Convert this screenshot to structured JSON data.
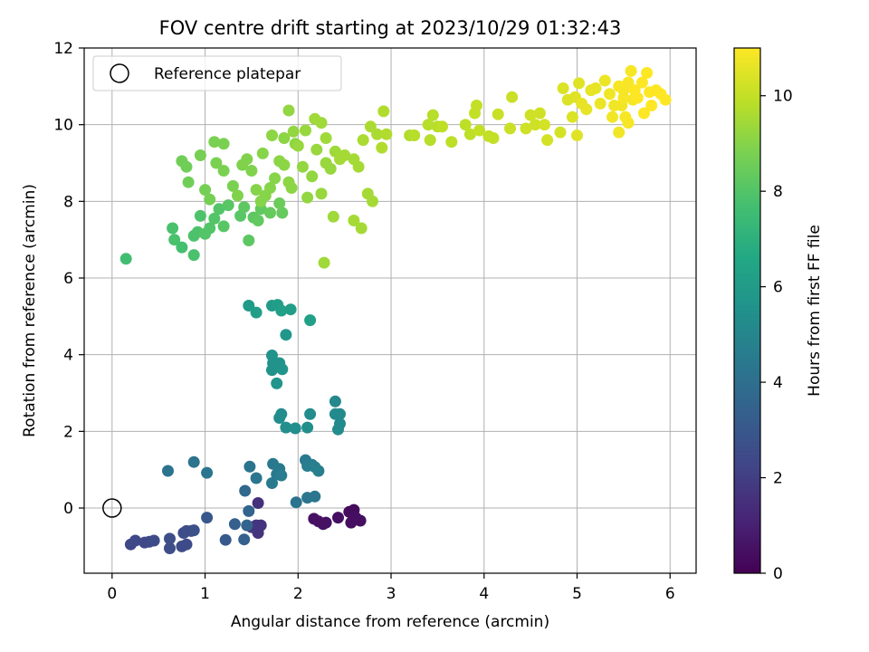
{
  "chart_data": {
    "type": "scatter",
    "title": "FOV centre drift starting at 2023/10/29 01:32:43",
    "xlabel": "Angular distance from reference (arcmin)",
    "ylabel": "Rotation from reference (arcmin)",
    "xlim": [
      -0.3,
      6.28
    ],
    "ylim": [
      -1.7,
      12
    ],
    "xticks": [
      0,
      1,
      2,
      3,
      4,
      5,
      6
    ],
    "yticks": [
      0,
      2,
      4,
      6,
      8,
      10,
      12
    ],
    "grid": true,
    "legend": {
      "placement": "top-left",
      "entries": [
        "Reference platepar"
      ]
    },
    "reference_point": {
      "x": 0,
      "y": 0
    },
    "colorbar": {
      "label": "Hours from first FF file",
      "colormap": "viridis",
      "range": [
        0,
        11
      ],
      "ticks": [
        0,
        2,
        4,
        6,
        8,
        10
      ]
    },
    "series": [
      {
        "columns": [
          "x",
          "y",
          "hours"
        ],
        "points": [
          [
            2.17,
            -0.28,
            0.5
          ],
          [
            2.22,
            -0.35,
            0.5
          ],
          [
            2.27,
            -0.42,
            0.5
          ],
          [
            2.3,
            -0.38,
            0.5
          ],
          [
            2.43,
            -0.25,
            0.4
          ],
          [
            2.55,
            -0.1,
            0.3
          ],
          [
            2.57,
            -0.38,
            0.4
          ],
          [
            2.6,
            -0.05,
            0.3
          ],
          [
            2.62,
            -0.25,
            0.4
          ],
          [
            2.67,
            -0.33,
            0.4
          ],
          [
            1.57,
            -0.65,
            1.6
          ],
          [
            1.6,
            -0.45,
            1.6
          ],
          [
            1.57,
            0.13,
            1.5
          ],
          [
            1.5,
            -0.5,
            1.8
          ],
          [
            1.55,
            -0.45,
            1.7
          ],
          [
            0.2,
            -0.95,
            2.4
          ],
          [
            0.25,
            -0.85,
            2.4
          ],
          [
            0.35,
            -0.9,
            2.4
          ],
          [
            0.4,
            -0.88,
            2.4
          ],
          [
            0.45,
            -0.85,
            2.5
          ],
          [
            0.62,
            -0.8,
            2.6
          ],
          [
            0.62,
            -1.05,
            2.6
          ],
          [
            0.75,
            -1.0,
            2.5
          ],
          [
            0.8,
            -0.95,
            2.5
          ],
          [
            0.77,
            -0.65,
            2.6
          ],
          [
            0.8,
            -0.6,
            2.6
          ],
          [
            0.85,
            -0.6,
            2.6
          ],
          [
            0.88,
            -0.58,
            2.7
          ],
          [
            1.02,
            -0.25,
            3.0
          ],
          [
            1.22,
            -0.83,
            3.1
          ],
          [
            1.32,
            -0.42,
            3.3
          ],
          [
            1.42,
            -0.82,
            3.4
          ],
          [
            1.45,
            -0.45,
            3.5
          ],
          [
            1.47,
            -0.08,
            3.5
          ],
          [
            1.43,
            0.45,
            3.7
          ],
          [
            0.6,
            0.97,
            4.2
          ],
          [
            0.88,
            1.2,
            4.2
          ],
          [
            1.02,
            0.92,
            4.3
          ],
          [
            1.48,
            1.08,
            4.2
          ],
          [
            1.55,
            0.78,
            4.3
          ],
          [
            1.73,
            1.15,
            4.4
          ],
          [
            1.77,
            0.88,
            4.5
          ],
          [
            1.8,
            1.02,
            4.5
          ],
          [
            1.72,
            0.65,
            4.5
          ],
          [
            1.82,
            0.85,
            4.6
          ],
          [
            1.98,
            0.15,
            4.2
          ],
          [
            2.1,
            0.27,
            4.3
          ],
          [
            2.18,
            0.3,
            4.3
          ],
          [
            2.08,
            1.25,
            4.5
          ],
          [
            2.1,
            1.1,
            4.6
          ],
          [
            2.15,
            1.13,
            4.6
          ],
          [
            2.18,
            1.07,
            4.7
          ],
          [
            2.22,
            0.97,
            4.7
          ],
          [
            2.4,
            2.78,
            5.1
          ],
          [
            2.4,
            2.45,
            5.2
          ],
          [
            2.45,
            2.45,
            5.2
          ],
          [
            2.43,
            2.05,
            5.3
          ],
          [
            2.45,
            2.2,
            5.2
          ],
          [
            1.8,
            2.35,
            5.3
          ],
          [
            1.82,
            2.45,
            5.3
          ],
          [
            1.87,
            2.1,
            5.4
          ],
          [
            1.97,
            2.08,
            5.4
          ],
          [
            2.1,
            2.1,
            5.4
          ],
          [
            2.13,
            2.45,
            5.3
          ],
          [
            1.72,
            3.98,
            5.6
          ],
          [
            1.73,
            3.78,
            5.6
          ],
          [
            1.72,
            3.6,
            5.6
          ],
          [
            1.77,
            3.25,
            5.7
          ],
          [
            1.8,
            3.78,
            5.6
          ],
          [
            1.83,
            3.62,
            5.7
          ],
          [
            1.87,
            4.52,
            5.8
          ],
          [
            1.47,
            5.28,
            6.0
          ],
          [
            1.55,
            5.1,
            6.1
          ],
          [
            1.72,
            5.28,
            6.0
          ],
          [
            1.78,
            5.3,
            6.1
          ],
          [
            1.82,
            5.15,
            6.2
          ],
          [
            1.92,
            5.18,
            6.1
          ],
          [
            2.13,
            4.9,
            6.2
          ],
          [
            0.15,
            6.5,
            7.6
          ],
          [
            0.65,
            7.3,
            7.8
          ],
          [
            0.67,
            7.0,
            7.8
          ],
          [
            0.75,
            6.8,
            7.7
          ],
          [
            0.88,
            6.6,
            7.8
          ],
          [
            0.88,
            7.1,
            7.9
          ],
          [
            0.92,
            7.2,
            7.9
          ],
          [
            0.95,
            7.62,
            7.9
          ],
          [
            1.0,
            7.15,
            8.0
          ],
          [
            1.05,
            7.3,
            8.0
          ],
          [
            1.1,
            7.55,
            8.0
          ],
          [
            1.15,
            7.8,
            8.0
          ],
          [
            1.2,
            7.35,
            8.1
          ],
          [
            1.25,
            7.9,
            8.1
          ],
          [
            1.38,
            7.62,
            8.1
          ],
          [
            1.42,
            7.85,
            8.2
          ],
          [
            1.47,
            6.98,
            8.2
          ],
          [
            1.52,
            7.58,
            8.2
          ],
          [
            1.57,
            7.5,
            8.3
          ],
          [
            1.6,
            7.8,
            8.3
          ],
          [
            1.7,
            7.7,
            8.4
          ],
          [
            1.83,
            7.7,
            8.4
          ],
          [
            1.8,
            7.95,
            8.5
          ],
          [
            0.75,
            9.05,
            8.6
          ],
          [
            0.8,
            8.9,
            8.6
          ],
          [
            0.82,
            8.5,
            8.6
          ],
          [
            0.95,
            9.2,
            8.7
          ],
          [
            1.0,
            8.3,
            8.7
          ],
          [
            1.05,
            8.05,
            8.7
          ],
          [
            1.1,
            9.55,
            8.8
          ],
          [
            1.12,
            9.0,
            8.8
          ],
          [
            1.2,
            8.8,
            8.8
          ],
          [
            1.2,
            9.5,
            8.8
          ],
          [
            1.3,
            8.4,
            8.8
          ],
          [
            1.35,
            8.15,
            8.9
          ],
          [
            1.4,
            8.95,
            8.9
          ],
          [
            1.45,
            9.1,
            8.9
          ],
          [
            1.5,
            8.8,
            8.9
          ],
          [
            1.55,
            8.3,
            9.0
          ],
          [
            1.6,
            8.0,
            9.0
          ],
          [
            1.65,
            8.15,
            9.0
          ],
          [
            1.7,
            8.35,
            9.0
          ],
          [
            1.75,
            8.6,
            9.0
          ],
          [
            1.8,
            9.05,
            9.1
          ],
          [
            1.85,
            8.95,
            9.1
          ],
          [
            1.9,
            8.5,
            9.1
          ],
          [
            1.93,
            8.35,
            9.1
          ],
          [
            1.97,
            9.5,
            9.1
          ],
          [
            2.05,
            8.9,
            9.2
          ],
          [
            2.1,
            8.1,
            9.2
          ],
          [
            2.15,
            8.65,
            9.2
          ],
          [
            2.2,
            9.35,
            9.3
          ],
          [
            2.25,
            8.2,
            9.3
          ],
          [
            2.3,
            9.0,
            9.3
          ],
          [
            2.35,
            8.85,
            9.3
          ],
          [
            2.4,
            9.3,
            9.4
          ],
          [
            2.28,
            6.4,
            9.4
          ],
          [
            2.38,
            7.6,
            9.4
          ],
          [
            2.6,
            7.5,
            9.5
          ],
          [
            2.68,
            7.3,
            9.5
          ],
          [
            2.75,
            8.2,
            9.5
          ],
          [
            2.8,
            8.0,
            9.5
          ],
          [
            1.62,
            9.25,
            9.0
          ],
          [
            1.72,
            9.72,
            9.1
          ],
          [
            1.85,
            9.65,
            9.1
          ],
          [
            1.9,
            10.37,
            9.2
          ],
          [
            1.95,
            9.82,
            9.2
          ],
          [
            2.0,
            9.45,
            9.3
          ],
          [
            2.08,
            9.85,
            9.3
          ],
          [
            2.18,
            10.15,
            9.4
          ],
          [
            2.25,
            10.05,
            9.4
          ],
          [
            2.3,
            9.65,
            9.4
          ],
          [
            2.45,
            9.1,
            9.5
          ],
          [
            2.5,
            9.2,
            9.5
          ],
          [
            2.6,
            9.1,
            9.5
          ],
          [
            2.65,
            8.9,
            9.5
          ],
          [
            2.7,
            9.6,
            9.6
          ],
          [
            2.78,
            9.95,
            9.6
          ],
          [
            2.85,
            9.75,
            9.6
          ],
          [
            2.9,
            9.4,
            9.7
          ],
          [
            2.92,
            10.35,
            9.7
          ],
          [
            2.95,
            9.75,
            9.7
          ],
          [
            3.2,
            9.72,
            9.7
          ],
          [
            3.25,
            9.72,
            9.8
          ],
          [
            3.4,
            10.0,
            9.8
          ],
          [
            3.42,
            9.6,
            9.8
          ],
          [
            3.45,
            10.25,
            9.8
          ],
          [
            3.5,
            9.95,
            9.8
          ],
          [
            3.55,
            9.95,
            9.9
          ],
          [
            3.65,
            9.55,
            9.9
          ],
          [
            3.8,
            10.0,
            9.9
          ],
          [
            3.85,
            9.75,
            9.9
          ],
          [
            3.9,
            10.3,
            10.0
          ],
          [
            3.92,
            10.5,
            10.0
          ],
          [
            3.95,
            9.85,
            10.0
          ],
          [
            4.05,
            9.7,
            10.0
          ],
          [
            4.1,
            9.65,
            10.0
          ],
          [
            4.15,
            10.27,
            10.1
          ],
          [
            4.28,
            9.9,
            10.1
          ],
          [
            4.3,
            10.72,
            10.1
          ],
          [
            4.45,
            9.9,
            10.2
          ],
          [
            4.5,
            10.25,
            10.2
          ],
          [
            4.55,
            10.0,
            10.2
          ],
          [
            4.6,
            10.3,
            10.2
          ],
          [
            4.65,
            10.0,
            10.3
          ],
          [
            4.68,
            9.6,
            10.3
          ],
          [
            4.82,
            9.8,
            10.3
          ],
          [
            4.85,
            10.95,
            10.4
          ],
          [
            4.9,
            10.65,
            10.4
          ],
          [
            4.95,
            10.2,
            10.4
          ],
          [
            4.98,
            10.72,
            10.5
          ],
          [
            5.0,
            9.72,
            10.5
          ],
          [
            5.02,
            11.08,
            10.5
          ],
          [
            5.05,
            10.55,
            10.6
          ],
          [
            5.1,
            10.4,
            10.6
          ],
          [
            5.15,
            10.9,
            10.6
          ],
          [
            5.2,
            10.95,
            10.6
          ],
          [
            5.25,
            10.55,
            10.7
          ],
          [
            5.3,
            11.15,
            10.7
          ],
          [
            5.35,
            10.8,
            10.8
          ],
          [
            5.4,
            10.5,
            10.8
          ],
          [
            5.45,
            9.8,
            10.8
          ],
          [
            5.48,
            10.5,
            10.8
          ],
          [
            5.5,
            10.9,
            10.9
          ],
          [
            5.52,
            10.2,
            10.9
          ],
          [
            5.55,
            10.05,
            10.9
          ],
          [
            5.58,
            11.4,
            10.9
          ],
          [
            5.6,
            10.65,
            10.9
          ],
          [
            5.62,
            10.9,
            11.0
          ],
          [
            5.65,
            10.7,
            11.0
          ],
          [
            5.7,
            11.1,
            11.0
          ],
          [
            5.72,
            10.3,
            11.0
          ],
          [
            5.75,
            11.35,
            11.0
          ],
          [
            5.78,
            10.85,
            11.0
          ],
          [
            5.8,
            10.5,
            11.0
          ],
          [
            5.85,
            10.9,
            11.0
          ],
          [
            5.9,
            10.8,
            11.0
          ],
          [
            5.95,
            10.65,
            11.0
          ],
          [
            5.45,
            11.0,
            10.9
          ],
          [
            5.55,
            11.1,
            10.9
          ],
          [
            5.5,
            10.7,
            10.9
          ],
          [
            5.38,
            10.2,
            10.8
          ]
        ]
      }
    ]
  }
}
